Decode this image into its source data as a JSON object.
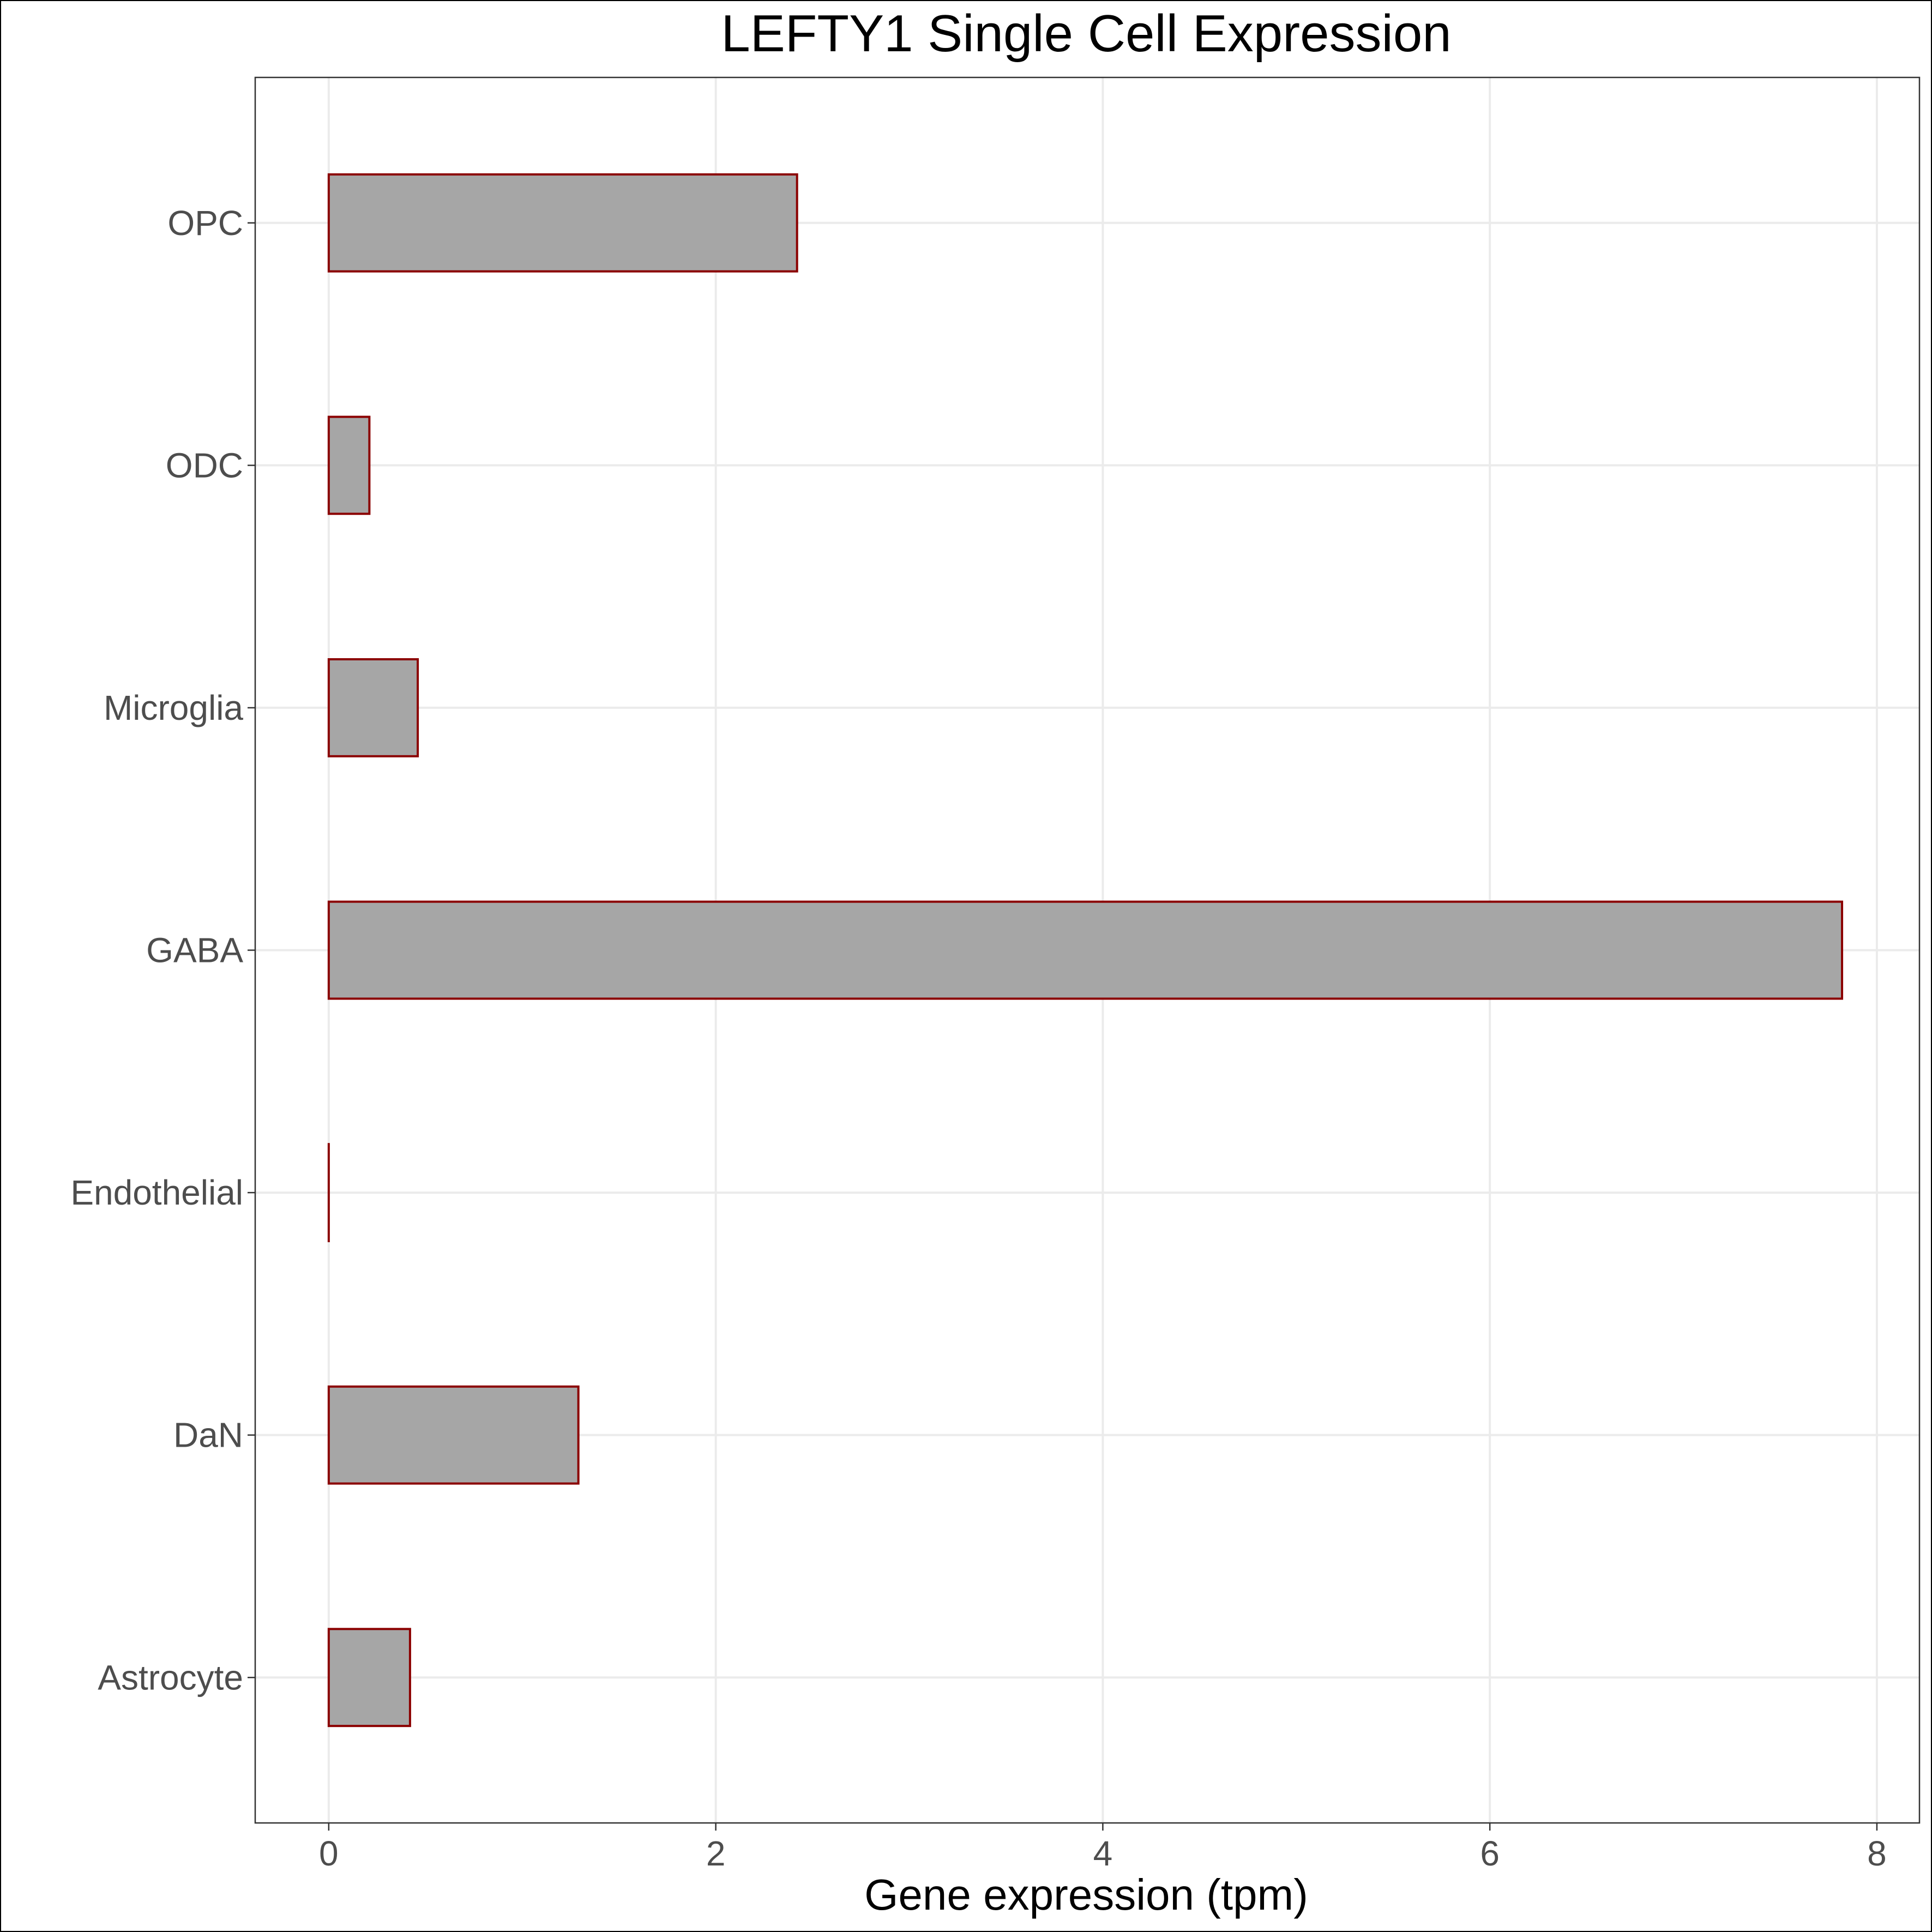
{
  "chart_data": {
    "type": "bar",
    "orientation": "horizontal",
    "title": "LEFTY1 Single Cell Expression",
    "xlabel": "Gene expression (tpm)",
    "ylabel": "",
    "categories": [
      "Astrocyte",
      "DaN",
      "Endothelial",
      "GABA",
      "Microglia",
      "ODC",
      "OPC"
    ],
    "values": [
      0.42,
      1.29,
      0.0,
      7.82,
      0.46,
      0.21,
      2.42
    ],
    "xlim": [
      -0.38,
      8.22
    ],
    "xticks": [
      0,
      2,
      4,
      6,
      8
    ],
    "xtick_labels": [
      "0",
      "2",
      "4",
      "6",
      "8"
    ],
    "grid": true,
    "legend": "none",
    "colors": {
      "bar_fill": "#a6a6a6",
      "bar_stroke": "#8b0000",
      "grid": "#ebebeb",
      "panel_border": "#333333",
      "tick_label": "#4d4d4d"
    }
  }
}
